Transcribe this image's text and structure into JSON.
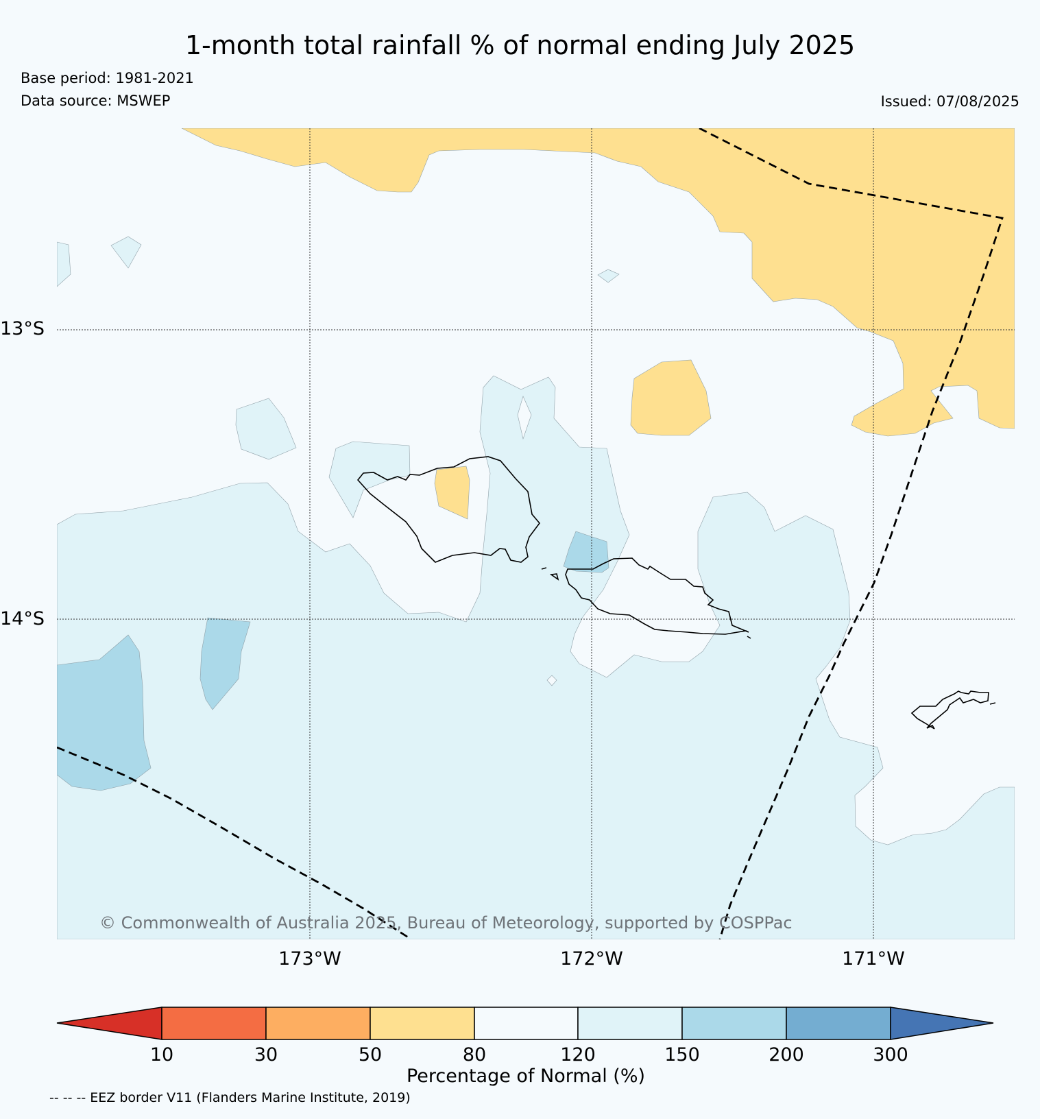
{
  "title": "1-month total rainfall % of normal ending July 2025",
  "base_period": "Base period: 1981-2021",
  "data_source": "Data source: MSWEP",
  "issued": "Issued: 07/08/2025",
  "lat_labels": [
    "13°S",
    "14°S"
  ],
  "lon_labels": [
    "173°W",
    "172°W",
    "171°W"
  ],
  "copyright": "© Commonwealth of Australia 2025, Bureau of Meteorology, supported by COSPPac",
  "colorbar": {
    "label": "Percentage of Normal (%)",
    "ticks": [
      "10",
      "30",
      "50",
      "80",
      "120",
      "150",
      "200",
      "300"
    ],
    "colors": [
      "#d73027",
      "#f46d43",
      "#fdae61",
      "#fee090",
      "#f5fafd",
      "#e0f3f8",
      "#abd9e9",
      "#74add1",
      "#4575b4"
    ]
  },
  "legend_note": "-- -- -- EEZ border V11 (Flanders Marine Institute, 2019)"
}
